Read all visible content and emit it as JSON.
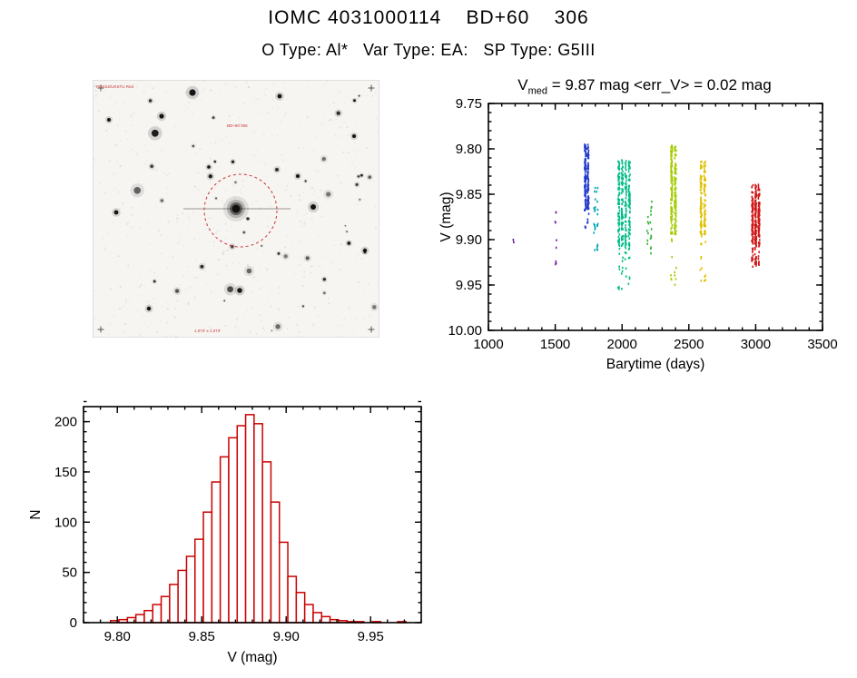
{
  "page": {
    "title": "IOMC 4031000114    BD+60    306",
    "subtitle": "O Type: Al*   Var Type: EA:   SP Type: G5III"
  },
  "finder": {
    "top_left_label": "POSS2/UKSTU Red",
    "target_label": "BD+60 306",
    "bottom_label": "1.073' x 1.073'",
    "circle_color": "#cc3333"
  },
  "chart_data": [
    {
      "id": "lightcurve",
      "type": "scatter",
      "title": {
        "var": "V",
        "sub": "med",
        "rest": " = 9.87 mag <err_V> = 0.02 mag"
      },
      "xlabel": "Barytime (days)",
      "ylabel": "V (mag)",
      "xlim": [
        1000,
        3500
      ],
      "ylim": [
        9.75,
        10.0
      ],
      "y_increases_downward": true,
      "xticks": [
        1000,
        1500,
        2000,
        2500,
        3000,
        3500
      ],
      "yticks": [
        9.75,
        9.8,
        9.85,
        9.9,
        9.95,
        10.0
      ],
      "x_minor_step": 100,
      "y_minor_step": 0.01,
      "clusters": [
        {
          "x": 1190,
          "color": "#5e1b8f",
          "streaks": 1,
          "gap": 0,
          "segments": [
            {
              "y0": 9.896,
              "y1": 9.904,
              "n": 2
            }
          ]
        },
        {
          "x": 1505,
          "color": "#7a1fa8",
          "streaks": 1,
          "gap": 0,
          "segments": [
            {
              "y0": 9.868,
              "y1": 9.935,
              "n": 9
            }
          ]
        },
        {
          "x": 1735,
          "color": "#2038cc",
          "streaks": 2,
          "gap": 20,
          "segments": [
            {
              "y0": 9.795,
              "y1": 9.868,
              "n": 170
            },
            {
              "y0": 9.868,
              "y1": 9.889,
              "n": 7
            }
          ]
        },
        {
          "x": 1805,
          "color": "#00a4b4",
          "streaks": 2,
          "gap": 22,
          "segments": [
            {
              "y0": 9.843,
              "y1": 9.913,
              "n": 28
            }
          ]
        },
        {
          "x": 2015,
          "color": "#00bd86",
          "streaks": 4,
          "gap": 26,
          "segments": [
            {
              "y0": 9.812,
              "y1": 9.908,
              "n": 300
            },
            {
              "y0": 9.908,
              "y1": 9.957,
              "n": 26
            }
          ]
        },
        {
          "x": 2205,
          "color": "#2fb32f",
          "streaks": 2,
          "gap": 24,
          "segments": [
            {
              "y0": 9.856,
              "y1": 9.916,
              "n": 20
            }
          ]
        },
        {
          "x": 2385,
          "color": "#a4cc00",
          "streaks": 2,
          "gap": 28,
          "segments": [
            {
              "y0": 9.796,
              "y1": 9.895,
              "n": 210
            },
            {
              "y0": 9.895,
              "y1": 9.955,
              "n": 12
            }
          ]
        },
        {
          "x": 2605,
          "color": "#e0c000",
          "streaks": 2,
          "gap": 28,
          "segments": [
            {
              "y0": 9.814,
              "y1": 9.895,
              "n": 150
            },
            {
              "y0": 9.895,
              "y1": 9.947,
              "n": 14
            }
          ]
        },
        {
          "x": 3000,
          "color": "#d01818",
          "streaks": 3,
          "gap": 24,
          "segments": [
            {
              "y0": 9.838,
              "y1": 9.93,
              "n": 190
            },
            {
              "y0": 9.856,
              "y1": 9.905,
              "n": 120
            }
          ]
        }
      ]
    },
    {
      "id": "histogram",
      "type": "bar",
      "xlabel": "V (mag)",
      "ylabel": "N",
      "xlim": [
        9.78,
        9.98
      ],
      "ylim": [
        0,
        215
      ],
      "y_increases_downward": false,
      "xticks": [
        9.8,
        9.85,
        9.9,
        9.95
      ],
      "yticks": [
        0,
        50,
        100,
        150,
        200
      ],
      "x_minor_step": 0.01,
      "y_minor_step": 10,
      "bin_start": 9.796,
      "bin_width": 0.005,
      "counts": [
        2,
        3,
        5,
        8,
        12,
        18,
        26,
        38,
        52,
        66,
        83,
        110,
        140,
        165,
        184,
        196,
        207,
        198,
        160,
        120,
        80,
        46,
        30,
        18,
        10,
        6,
        3,
        2,
        1,
        1,
        0,
        1,
        0,
        0,
        1
      ],
      "color": "#cc0000"
    }
  ]
}
